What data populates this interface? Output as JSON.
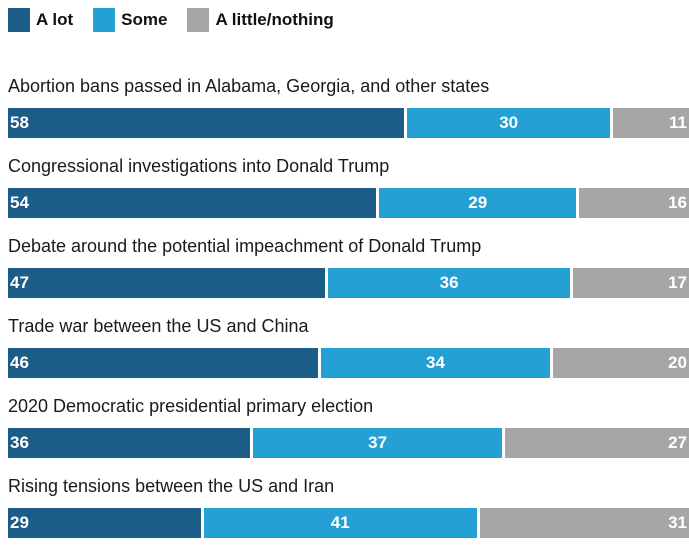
{
  "chart_data": {
    "type": "bar",
    "orientation": "horizontal",
    "stacked": true,
    "legend_position": "top-left",
    "grid": false,
    "categories": [
      "Abortion bans passed in Alabama, Georgia, and other states",
      "Congressional investigations into Donald Trump",
      "Debate around the potential impeachment of Donald Trump",
      "Trade war between the US and China",
      "2020 Democratic presidential primary election",
      "Rising tensions between the US and Iran"
    ],
    "series": [
      {
        "name": "A lot",
        "color": "#1b5d87",
        "values": [
          58,
          54,
          47,
          46,
          36,
          29
        ]
      },
      {
        "name": "Some",
        "color": "#24a0d5",
        "values": [
          30,
          29,
          36,
          34,
          37,
          41
        ]
      },
      {
        "name": "A little/nothing",
        "color": "#a6a6a6",
        "values": [
          11,
          16,
          17,
          20,
          27,
          31
        ]
      }
    ]
  }
}
